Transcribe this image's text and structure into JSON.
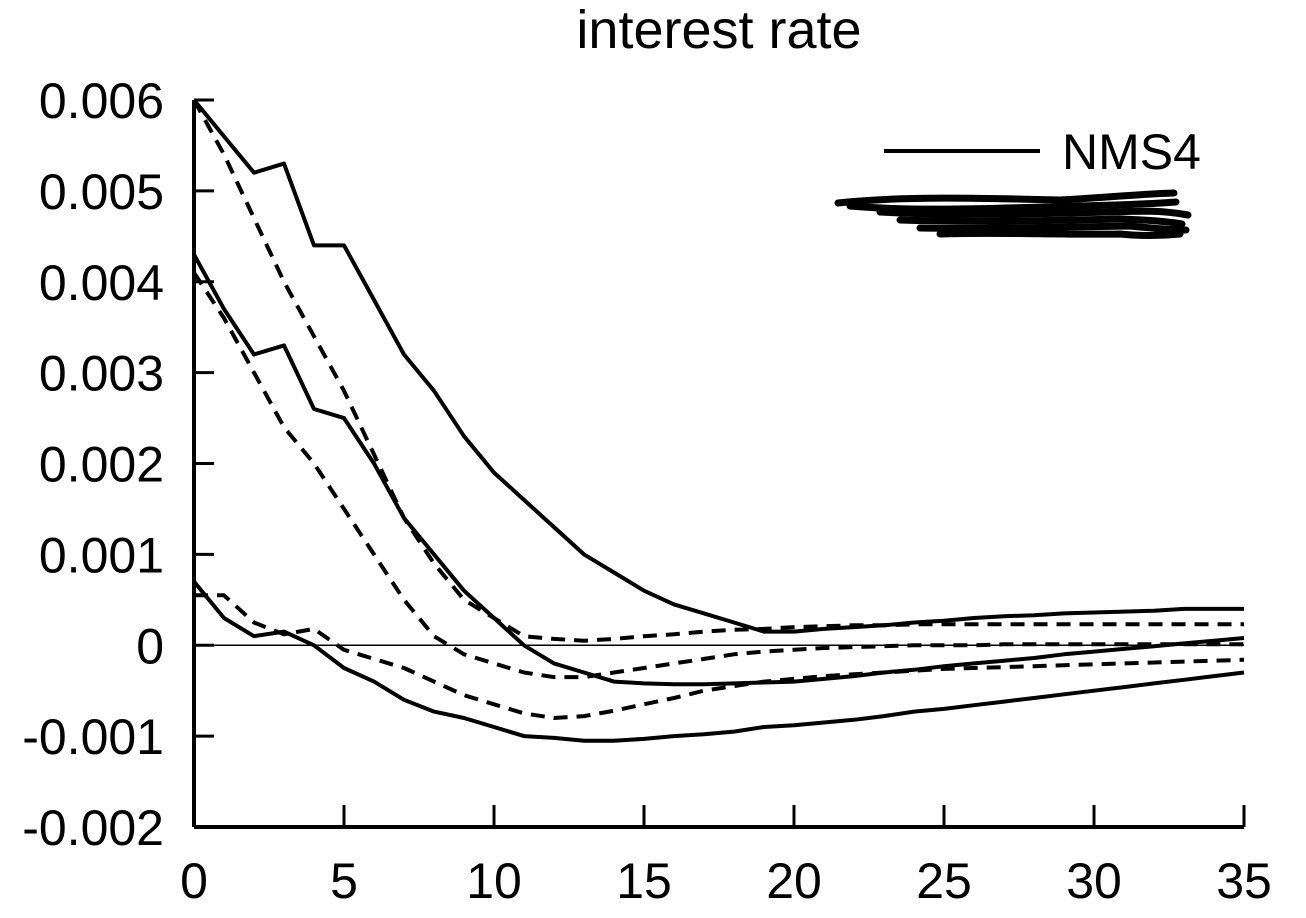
{
  "chart_data": {
    "type": "line",
    "title": "interest rate",
    "xlabel": "",
    "ylabel": "",
    "xlim": [
      0,
      35
    ],
    "ylim": [
      -0.002,
      0.006
    ],
    "x_ticks": [
      "0",
      "5",
      "10",
      "15",
      "20",
      "25",
      "30",
      "35"
    ],
    "y_ticks": [
      "-0.002",
      "-0.001",
      "0",
      "0.001",
      "0.002",
      "0.003",
      "0.004",
      "0.005",
      "0.006"
    ],
    "grid": false,
    "zero_line": true,
    "legend": {
      "position": "top-right",
      "entries": [
        "NMS4"
      ],
      "second_entry_scribbled_out": true
    },
    "line_color": "#000000",
    "series": [
      {
        "name": "NMS4",
        "style": "solid",
        "x": [
          0,
          1,
          2,
          3,
          4,
          5,
          6,
          7,
          8,
          9,
          10,
          11,
          12,
          13,
          14,
          15,
          16,
          17,
          18,
          19,
          20,
          21,
          22,
          23,
          24,
          25,
          26,
          27,
          28,
          29,
          30,
          31,
          32,
          33,
          34,
          35
        ],
        "values": [
          0.006,
          0.0056,
          0.0052,
          0.0053,
          0.0044,
          0.0044,
          0.0038,
          0.0032,
          0.0028,
          0.0023,
          0.0019,
          0.0016,
          0.0013,
          0.001,
          0.0008,
          0.0006,
          0.00045,
          0.00035,
          0.00025,
          0.00015,
          0.00015,
          0.00018,
          0.0002,
          0.00022,
          0.00025,
          0.00027,
          0.0003,
          0.00032,
          0.00033,
          0.00035,
          0.00036,
          0.00037,
          0.00038,
          0.0004,
          0.0004,
          0.0004
        ]
      },
      {
        "name": "NMS4",
        "style": "solid",
        "x": [
          0,
          1,
          2,
          3,
          4,
          5,
          6,
          7,
          8,
          9,
          10,
          11,
          12,
          13,
          14,
          15,
          16,
          17,
          18,
          19,
          20,
          21,
          22,
          23,
          24,
          25,
          26,
          27,
          28,
          29,
          30,
          31,
          32,
          33,
          34,
          35
        ],
        "values": [
          0.0043,
          0.0037,
          0.0032,
          0.0033,
          0.0026,
          0.0025,
          0.002,
          0.0014,
          0.001,
          0.0006,
          0.0003,
          0.0,
          -0.0002,
          -0.0003,
          -0.0004,
          -0.00042,
          -0.00043,
          -0.00043,
          -0.00042,
          -0.00041,
          -0.0004,
          -0.00037,
          -0.00034,
          -0.0003,
          -0.00027,
          -0.00023,
          -0.0002,
          -0.00017,
          -0.00014,
          -0.0001,
          -7e-05,
          -4e-05,
          -1e-05,
          2e-05,
          5e-05,
          8e-05
        ]
      },
      {
        "name": "NMS4",
        "style": "solid",
        "x": [
          0,
          1,
          2,
          3,
          4,
          5,
          6,
          7,
          8,
          9,
          10,
          11,
          12,
          13,
          14,
          15,
          16,
          17,
          18,
          19,
          20,
          21,
          22,
          23,
          24,
          25,
          26,
          27,
          28,
          29,
          30,
          31,
          32,
          33,
          34,
          35
        ],
        "values": [
          0.0007,
          0.0003,
          0.0001,
          0.00015,
          0.0,
          -0.00025,
          -0.0004,
          -0.0006,
          -0.00073,
          -0.0008,
          -0.0009,
          -0.001,
          -0.00102,
          -0.00105,
          -0.00105,
          -0.00103,
          -0.001,
          -0.00098,
          -0.00095,
          -0.0009,
          -0.00088,
          -0.00085,
          -0.00082,
          -0.00078,
          -0.00073,
          -0.0007,
          -0.00066,
          -0.00062,
          -0.00058,
          -0.00054,
          -0.0005,
          -0.00046,
          -0.00042,
          -0.00038,
          -0.00034,
          -0.0003
        ]
      },
      {
        "style": "dashed",
        "x": [
          0,
          1,
          2,
          3,
          4,
          5,
          6,
          7,
          8,
          9,
          10,
          11,
          12,
          13,
          14,
          15,
          16,
          17,
          18,
          19,
          20,
          21,
          22,
          23,
          24,
          25,
          26,
          27,
          28,
          29,
          30,
          31,
          32,
          33,
          34,
          35
        ],
        "values": [
          0.006,
          0.0054,
          0.0047,
          0.004,
          0.0034,
          0.0028,
          0.0021,
          0.0014,
          0.0009,
          0.0005,
          0.0003,
          0.0001,
          7e-05,
          5e-05,
          7e-05,
          0.0001,
          0.00012,
          0.00015,
          0.00017,
          0.00018,
          0.0002,
          0.00021,
          0.00022,
          0.00022,
          0.00023,
          0.00023,
          0.00023,
          0.00023,
          0.00023,
          0.00023,
          0.00023,
          0.00023,
          0.00023,
          0.00023,
          0.00023,
          0.00023
        ]
      },
      {
        "style": "dashed",
        "x": [
          0,
          1,
          2,
          3,
          4,
          5,
          6,
          7,
          8,
          9,
          10,
          11,
          12,
          13,
          14,
          15,
          16,
          17,
          18,
          19,
          20,
          21,
          22,
          23,
          24,
          25,
          26,
          27,
          28,
          29,
          30,
          31,
          32,
          33,
          34,
          35
        ],
        "values": [
          0.0041,
          0.0036,
          0.003,
          0.0024,
          0.002,
          0.0015,
          0.001,
          0.0005,
          0.0001,
          -0.0001,
          -0.0002,
          -0.0003,
          -0.00035,
          -0.00035,
          -0.0003,
          -0.00025,
          -0.0002,
          -0.00015,
          -0.0001,
          -7e-05,
          -5e-05,
          -3e-05,
          -2e-05,
          -1e-05,
          0.0,
          0.0,
          0.0,
          1e-05,
          1e-05,
          1e-05,
          1e-05,
          1e-05,
          1e-05,
          1e-05,
          1e-05,
          1e-05
        ]
      },
      {
        "style": "dashed",
        "x": [
          0,
          1,
          2,
          3,
          4,
          5,
          6,
          7,
          8,
          9,
          10,
          11,
          12,
          13,
          14,
          15,
          16,
          17,
          18,
          19,
          20,
          21,
          22,
          23,
          24,
          25,
          26,
          27,
          28,
          29,
          30,
          31,
          32,
          33,
          34,
          35
        ],
        "values": [
          0.00055,
          0.00055,
          0.00025,
          0.00012,
          0.00018,
          -5e-05,
          -0.00015,
          -0.00025,
          -0.0004,
          -0.00055,
          -0.00065,
          -0.00075,
          -0.0008,
          -0.00078,
          -0.00072,
          -0.00065,
          -0.00058,
          -0.0005,
          -0.00045,
          -0.0004,
          -0.00037,
          -0.00034,
          -0.00032,
          -0.0003,
          -0.00028,
          -0.00026,
          -0.00025,
          -0.00024,
          -0.00023,
          -0.00022,
          -0.00021,
          -0.0002,
          -0.00019,
          -0.00018,
          -0.00017,
          -0.00016
        ]
      }
    ]
  }
}
